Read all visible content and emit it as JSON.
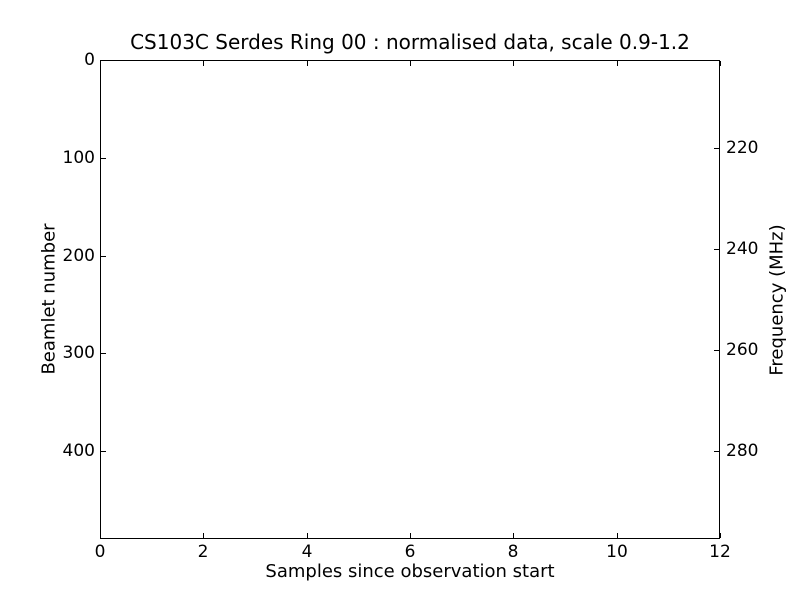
{
  "chart_data": {
    "type": "heatmap",
    "title": "CS103C Serdes Ring 00 : normalised data, scale 0.9-1.2",
    "xlabel": "Samples since observation start",
    "ylabel_left": "Beamlet number",
    "ylabel_right": "Frequency (MHz)",
    "x_ticks": [
      0,
      2,
      4,
      6,
      8,
      10,
      12
    ],
    "y_ticks_left": [
      0,
      100,
      200,
      300,
      400
    ],
    "y_ticks_right": [
      220,
      240,
      260,
      280
    ],
    "xlim": [
      0,
      12
    ],
    "ylim_left": [
      0,
      490
    ],
    "y_left_inverted": true,
    "ylim_right": [
      202.5,
      297.5
    ],
    "grid": false,
    "legend": null,
    "values": []
  },
  "colors": {
    "foreground": "#000000",
    "background": "#ffffff"
  }
}
